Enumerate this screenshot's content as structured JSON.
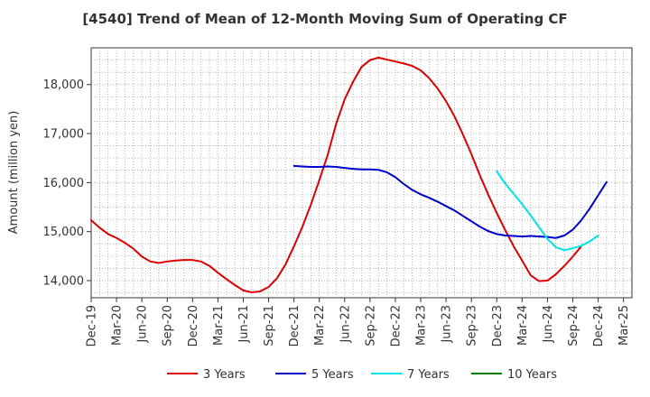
{
  "chart_data": {
    "type": "line",
    "title": "[4540]  Trend of Mean of 12-Month Moving Sum of Operating CF",
    "xlabel": "",
    "ylabel": "Amount (million yen)",
    "ylim": [
      13650,
      18750
    ],
    "yticks": [
      14000,
      15000,
      16000,
      17000,
      18000
    ],
    "ytick_labels": [
      "14,000",
      "15,000",
      "16,000",
      "17,000",
      "18,000"
    ],
    "x_tick_labels": [
      "Dec-19",
      "Mar-20",
      "Jun-20",
      "Sep-20",
      "Dec-20",
      "Mar-21",
      "Jun-21",
      "Sep-21",
      "Dec-21",
      "Mar-22",
      "Jun-22",
      "Sep-22",
      "Dec-22",
      "Mar-23",
      "Jun-23",
      "Sep-23",
      "Dec-23",
      "Mar-24",
      "Jun-24",
      "Sep-24",
      "Dec-24",
      "Mar-25"
    ],
    "x_months": 64,
    "grid": true,
    "legend_position": "bottom",
    "series": [
      {
        "name": "3 Years",
        "color": "#dd0000",
        "start_month": 0,
        "values": [
          15230,
          15080,
          14950,
          14870,
          14770,
          14650,
          14490,
          14390,
          14360,
          14390,
          14410,
          14420,
          14420,
          14390,
          14300,
          14160,
          14030,
          13910,
          13800,
          13760,
          13780,
          13870,
          14050,
          14330,
          14700,
          15100,
          15550,
          16050,
          16570,
          17200,
          17700,
          18060,
          18360,
          18500,
          18550,
          18510,
          18470,
          18430,
          18380,
          18290,
          18130,
          17920,
          17660,
          17350,
          16980,
          16580,
          16150,
          15750,
          15380,
          15030,
          14700,
          14410,
          14110,
          13990,
          14000,
          14130,
          14300,
          14490,
          14700
        ]
      },
      {
        "name": "5 Years",
        "color": "#0000cc",
        "start_month": 24,
        "values": [
          16340,
          16330,
          16320,
          16320,
          16330,
          16320,
          16300,
          16280,
          16270,
          16270,
          16260,
          16210,
          16110,
          15970,
          15850,
          15760,
          15690,
          15610,
          15520,
          15430,
          15320,
          15210,
          15100,
          15010,
          14950,
          14920,
          14910,
          14900,
          14910,
          14900,
          14890,
          14870,
          14920,
          15040,
          15230,
          15470,
          15740,
          16010
        ]
      },
      {
        "name": "7 Years",
        "color": "#00e5e5",
        "start_month": 48,
        "values": [
          16230,
          15980,
          15770,
          15560,
          15330,
          15090,
          14850,
          14680,
          14620,
          14660,
          14710,
          14800,
          14920
        ]
      },
      {
        "name": "10 Years",
        "color": "#008000",
        "start_month": 0,
        "values": []
      }
    ]
  }
}
